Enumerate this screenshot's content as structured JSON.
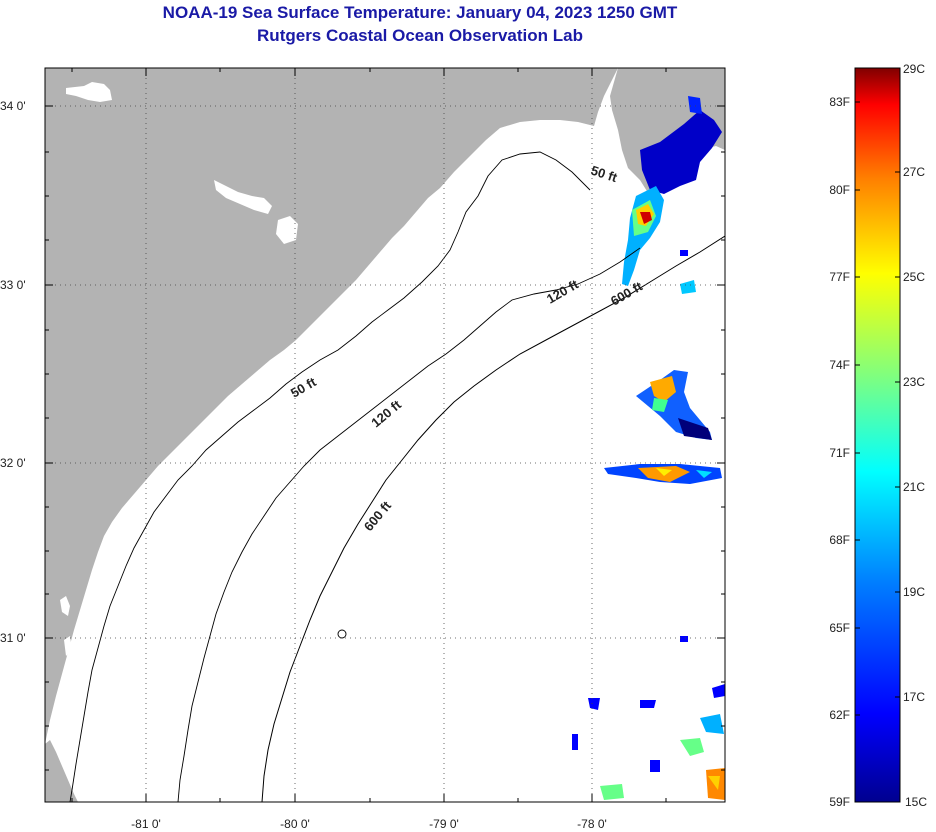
{
  "title": {
    "line1": "NOAA-19 Sea Surface Temperature:  January 04, 2023 1250 GMT",
    "line2": "Rutgers Coastal Ocean Observation Lab"
  },
  "map": {
    "land_color": "#b3b3b3",
    "lon_labels": [
      "-81 0'",
      "-80 0'",
      "-79 0'",
      "-78 0'"
    ],
    "lat_labels": [
      "34 0'",
      "33 0'",
      "32 0'",
      "31 0'"
    ],
    "contours": [
      {
        "label": "50 ft"
      },
      {
        "label": "120 ft"
      },
      {
        "label": "600 ft"
      },
      {
        "label": "50 ft"
      },
      {
        "label": "120 ft"
      },
      {
        "label": "600 ft"
      }
    ]
  },
  "colorbar": {
    "fahrenheit": [
      "83F",
      "80F",
      "77F",
      "74F",
      "71F",
      "68F",
      "65F",
      "62F",
      "59F"
    ],
    "celsius": [
      "29C",
      "27C",
      "25C",
      "23C",
      "21C",
      "19C",
      "17C",
      "15C"
    ],
    "colors": [
      "#00008f",
      "#0000ff",
      "#007fff",
      "#00ffff",
      "#7fff7f",
      "#ffff00",
      "#ff7f00",
      "#ff0000",
      "#800000"
    ]
  }
}
